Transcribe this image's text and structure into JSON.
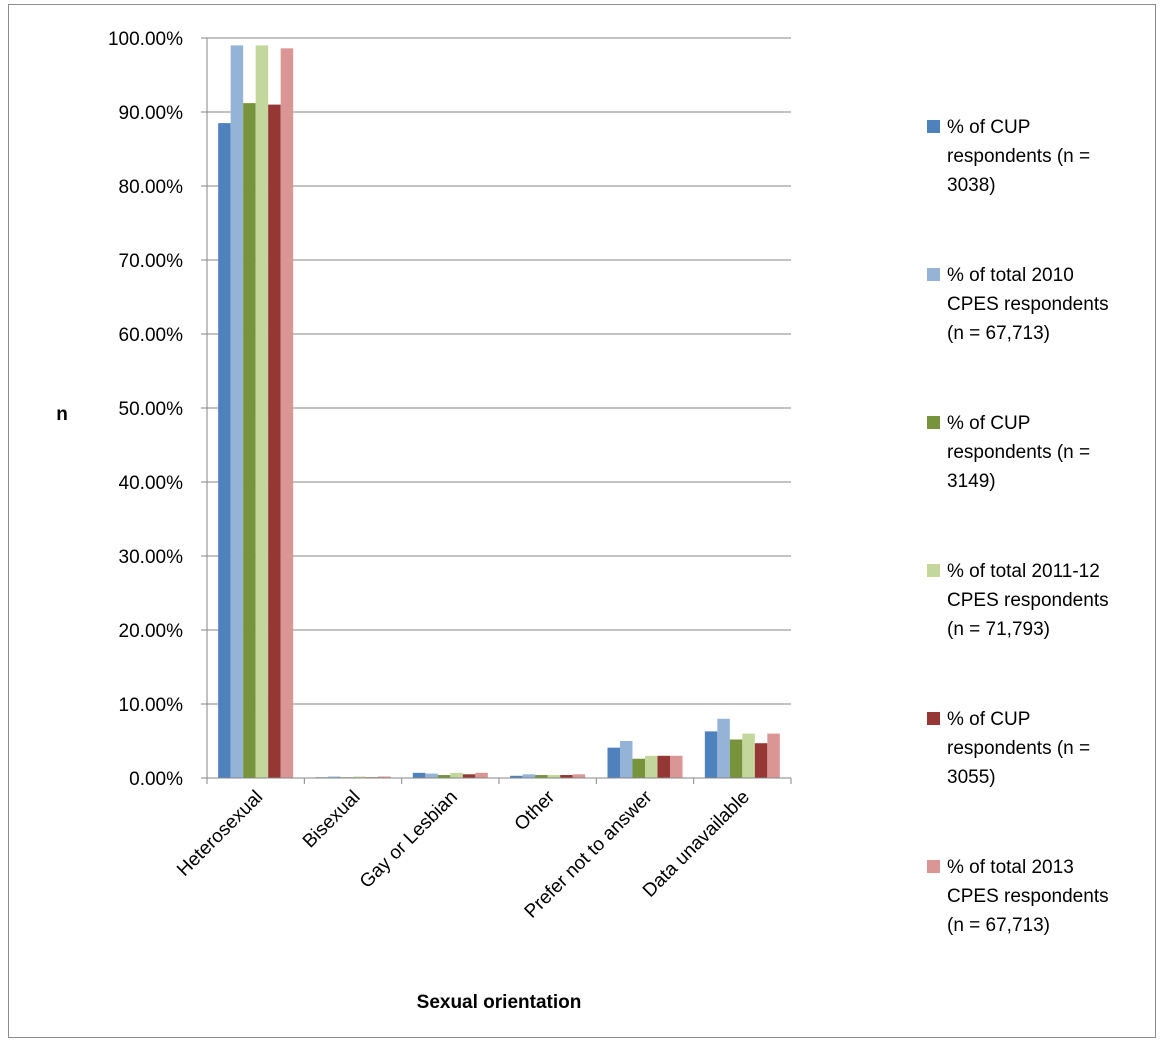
{
  "chart_data": {
    "type": "bar",
    "title": "",
    "xlabel": "Sexual orientation",
    "ylabel": "n",
    "ylim": [
      0,
      1
    ],
    "y_ticks": [
      "0.00%",
      "10.00%",
      "20.00%",
      "30.00%",
      "40.00%",
      "50.00%",
      "60.00%",
      "70.00%",
      "80.00%",
      "90.00%",
      "100.00%"
    ],
    "grid": true,
    "legend_position": "right",
    "categories": [
      "Heterosexual",
      "Bisexual",
      "Gay or Lesbian",
      "Other",
      "Prefer not to answer",
      "Data unavailable"
    ],
    "series": [
      {
        "name_lines": [
          "% of CUP",
          "respondents (n =",
          "3038)"
        ],
        "color": "#4f81bd",
        "values": [
          0.885,
          0.001,
          0.007,
          0.003,
          0.041,
          0.063
        ]
      },
      {
        "name_lines": [
          "% of total 2010",
          "CPES respondents",
          "(n = 67,713)"
        ],
        "color": "#95b3d7",
        "values": [
          0.99,
          0.002,
          0.006,
          0.005,
          0.05,
          0.08
        ]
      },
      {
        "name_lines": [
          "% of CUP",
          "respondents (n =",
          "3149)"
        ],
        "color": "#77933c",
        "values": [
          0.912,
          0.001,
          0.004,
          0.004,
          0.026,
          0.052
        ]
      },
      {
        "name_lines": [
          "% of total 2011-12",
          "CPES respondents",
          "(n = 71,793)"
        ],
        "color": "#c3d69b",
        "values": [
          0.99,
          0.002,
          0.007,
          0.004,
          0.03,
          0.06
        ]
      },
      {
        "name_lines": [
          "% of CUP",
          "respondents (n =",
          "3055)"
        ],
        "color": "#953735",
        "values": [
          0.91,
          0.001,
          0.005,
          0.004,
          0.03,
          0.047
        ]
      },
      {
        "name_lines": [
          "% of total 2013",
          "CPES respondents",
          "(n = 67,713)"
        ],
        "color": "#d99694",
        "values": [
          0.986,
          0.002,
          0.007,
          0.005,
          0.03,
          0.06
        ]
      }
    ]
  }
}
